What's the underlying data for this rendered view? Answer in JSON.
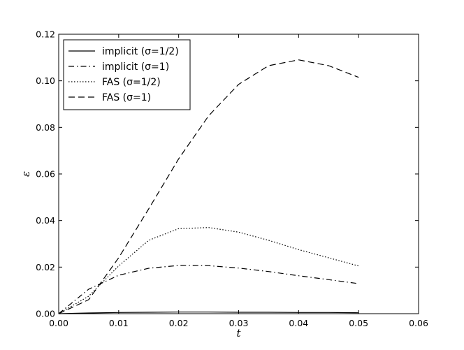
{
  "chart_data": {
    "type": "line",
    "xlabel": "t",
    "ylabel": "ε",
    "xlim": [
      0,
      0.06
    ],
    "ylim": [
      0,
      0.12
    ],
    "x_ticks": [
      "0.00",
      "0.01",
      "0.02",
      "0.03",
      "0.04",
      "0.05",
      "0.06"
    ],
    "y_ticks": [
      "0.00",
      "0.02",
      "0.04",
      "0.06",
      "0.08",
      "0.10",
      "0.12"
    ],
    "grid": false,
    "legend_position": "top-left",
    "series": [
      {
        "name": "implicit (σ=1/2)",
        "style": "solid",
        "color": "#000000",
        "x": [
          0,
          0.005,
          0.01,
          0.015,
          0.02,
          0.025,
          0.03,
          0.035,
          0.04,
          0.045,
          0.05
        ],
        "y": [
          0,
          0.0003,
          0.0005,
          0.0006,
          0.0007,
          0.0007,
          0.0006,
          0.0006,
          0.0005,
          0.0005,
          0.0004
        ]
      },
      {
        "name": "implicit (σ=1)",
        "style": "dashdot",
        "color": "#000000",
        "x": [
          0,
          0.005,
          0.01,
          0.015,
          0.02,
          0.025,
          0.03,
          0.035,
          0.04,
          0.045,
          0.05
        ],
        "y": [
          0,
          0.0105,
          0.0165,
          0.0195,
          0.0207,
          0.0206,
          0.0196,
          0.0181,
          0.0163,
          0.0146,
          0.0129
        ]
      },
      {
        "name": "FAS (σ=1/2)",
        "style": "dotted",
        "color": "#000000",
        "x": [
          0,
          0.005,
          0.01,
          0.015,
          0.02,
          0.025,
          0.03,
          0.035,
          0.04,
          0.045,
          0.05
        ],
        "y": [
          0,
          0.0075,
          0.0205,
          0.0315,
          0.0365,
          0.037,
          0.035,
          0.0315,
          0.0275,
          0.024,
          0.0205
        ]
      },
      {
        "name": "FAS (σ=1)",
        "style": "dashed",
        "color": "#000000",
        "x": [
          0,
          0.005,
          0.01,
          0.015,
          0.02,
          0.025,
          0.03,
          0.035,
          0.04,
          0.045,
          0.05
        ],
        "y": [
          0,
          0.006,
          0.024,
          0.045,
          0.0665,
          0.085,
          0.0985,
          0.1065,
          0.109,
          0.1065,
          0.1015
        ]
      }
    ]
  }
}
